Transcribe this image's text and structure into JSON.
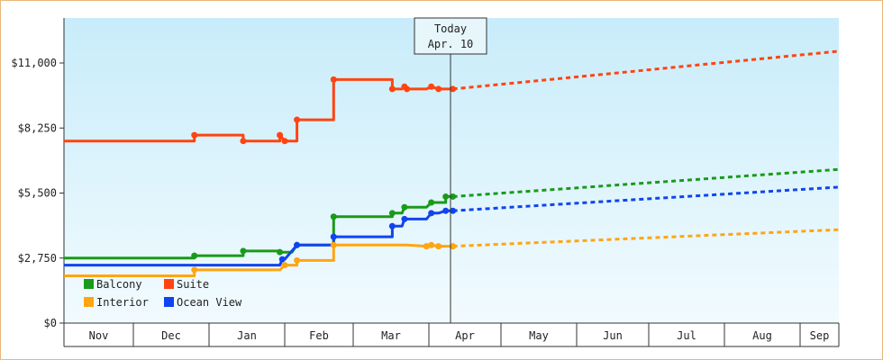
{
  "chart_data": {
    "type": "line",
    "title": "",
    "xlabel": "",
    "ylabel": "",
    "ylim": [
      0,
      12000
    ],
    "grid": false,
    "legend_position": "lower-left",
    "y_ticks": [
      "$0",
      "$2,750",
      "$5,500",
      "$8,250",
      "$11,000"
    ],
    "y_tick_values": [
      0,
      2750,
      5500,
      8250,
      11000
    ],
    "x_ticks": [
      "Nov",
      "Dec",
      "Jan",
      "Feb",
      "Mar",
      "Apr",
      "May",
      "Jun",
      "Jul",
      "Aug",
      "Sep"
    ],
    "today_marker": {
      "line1": "Today",
      "line2": "Apr. 10"
    },
    "colors": {
      "Balcony": "#1a9a1a",
      "Suite": "#ff4411",
      "Interior": "#ffa511",
      "Ocean View": "#1144ee"
    },
    "series": [
      {
        "name": "Suite",
        "history": [
          [
            0,
            7700
          ],
          [
            40,
            7700
          ],
          [
            55,
            7700
          ],
          [
            55,
            7950
          ],
          [
            75,
            7950
          ],
          [
            75,
            7700
          ],
          [
            90,
            7700
          ],
          [
            90,
            7950
          ],
          [
            92,
            7700
          ],
          [
            97,
            7700
          ],
          [
            97,
            8600
          ],
          [
            112,
            8600
          ],
          [
            112,
            10300
          ],
          [
            136,
            10300
          ],
          [
            136,
            9900
          ],
          [
            140,
            9900
          ],
          [
            141,
            10000
          ],
          [
            142,
            9900
          ],
          [
            150,
            9900
          ],
          [
            152,
            10000
          ],
          [
            155,
            9900
          ],
          [
            158,
            9900
          ],
          [
            161,
            9900
          ]
        ],
        "forecast": [
          [
            161,
            9900
          ],
          [
            315,
            11500
          ]
        ]
      },
      {
        "name": "Balcony",
        "history": [
          [
            0,
            2750
          ],
          [
            55,
            2750
          ],
          [
            55,
            2850
          ],
          [
            75,
            2850
          ],
          [
            75,
            3050
          ],
          [
            90,
            3050
          ],
          [
            90,
            3000
          ],
          [
            92,
            3000
          ],
          [
            95,
            3000
          ],
          [
            97,
            3300
          ],
          [
            112,
            3300
          ],
          [
            112,
            4500
          ],
          [
            136,
            4500
          ],
          [
            136,
            4650
          ],
          [
            140,
            4650
          ],
          [
            141,
            4900
          ],
          [
            150,
            4900
          ],
          [
            152,
            5100
          ],
          [
            155,
            5100
          ],
          [
            158,
            5100
          ],
          [
            158,
            5350
          ],
          [
            161,
            5350
          ]
        ],
        "forecast": [
          [
            161,
            5350
          ],
          [
            315,
            6500
          ]
        ]
      },
      {
        "name": "Ocean View",
        "history": [
          [
            0,
            2450
          ],
          [
            40,
            2450
          ],
          [
            55,
            2450
          ],
          [
            75,
            2450
          ],
          [
            90,
            2450
          ],
          [
            91,
            2700
          ],
          [
            92,
            2700
          ],
          [
            97,
            3300
          ],
          [
            112,
            3300
          ],
          [
            112,
            3650
          ],
          [
            136,
            3650
          ],
          [
            136,
            4100
          ],
          [
            140,
            4100
          ],
          [
            141,
            4400
          ],
          [
            150,
            4400
          ],
          [
            152,
            4650
          ],
          [
            155,
            4650
          ],
          [
            158,
            4750
          ],
          [
            161,
            4750
          ]
        ],
        "forecast": [
          [
            161,
            4750
          ],
          [
            315,
            5750
          ]
        ]
      },
      {
        "name": "Interior",
        "history": [
          [
            0,
            2000
          ],
          [
            40,
            2000
          ],
          [
            55,
            2000
          ],
          [
            55,
            2250
          ],
          [
            75,
            2250
          ],
          [
            90,
            2250
          ],
          [
            92,
            2450
          ],
          [
            97,
            2450
          ],
          [
            97,
            2650
          ],
          [
            112,
            2650
          ],
          [
            112,
            3300
          ],
          [
            136,
            3300
          ],
          [
            140,
            3300
          ],
          [
            142,
            3300
          ],
          [
            150,
            3250
          ],
          [
            152,
            3300
          ],
          [
            155,
            3250
          ],
          [
            158,
            3250
          ],
          [
            161,
            3250
          ]
        ],
        "forecast": [
          [
            161,
            3250
          ],
          [
            315,
            3950
          ]
        ]
      }
    ]
  },
  "legend": [
    {
      "label": "Balcony",
      "color": "#1a9a1a"
    },
    {
      "label": "Suite",
      "color": "#ff4411"
    },
    {
      "label": "Interior",
      "color": "#ffa511"
    },
    {
      "label": "Ocean View",
      "color": "#1144ee"
    }
  ]
}
